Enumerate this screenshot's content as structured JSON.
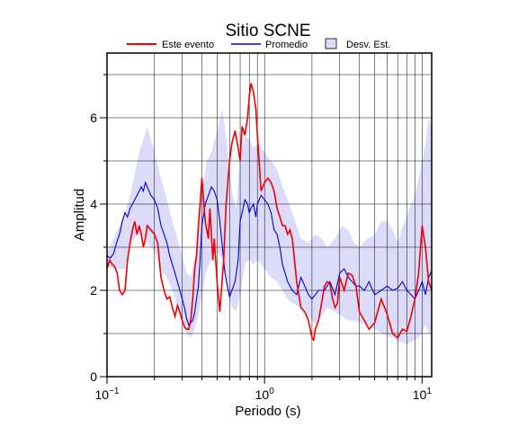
{
  "chart_data": {
    "type": "line",
    "title": "Sitio SCNE",
    "xlabel": "Periodo (s)",
    "ylabel": "Amplitud",
    "x_scale": "log",
    "xlim": [
      0.1,
      11.5
    ],
    "ylim": [
      0,
      7.5
    ],
    "grid": true,
    "legend_position": "top",
    "x_tick_labels": [
      {
        "value": 0.1,
        "base": "10",
        "exp": "−1"
      },
      {
        "value": 1,
        "base": "10",
        "exp": "0"
      },
      {
        "value": 10,
        "base": "10",
        "exp": "1"
      }
    ],
    "y_ticks": [
      0,
      2,
      4,
      6
    ],
    "legend": {
      "event_label": "Este evento",
      "mean_label": "Promedio",
      "std_label": "Desv. Est."
    },
    "colors": {
      "event": "#ee0000",
      "mean": "#0000dd",
      "std_fill": "#dcdcfa",
      "std_border": "#000000"
    },
    "series": [
      {
        "name": "Este evento",
        "x": [
          0.1,
          0.104,
          0.108,
          0.112,
          0.116,
          0.12,
          0.125,
          0.13,
          0.135,
          0.14,
          0.145,
          0.15,
          0.155,
          0.16,
          0.165,
          0.17,
          0.175,
          0.18,
          0.19,
          0.2,
          0.21,
          0.22,
          0.23,
          0.24,
          0.25,
          0.26,
          0.27,
          0.28,
          0.29,
          0.3,
          0.31,
          0.32,
          0.33,
          0.34,
          0.35,
          0.36,
          0.37,
          0.38,
          0.39,
          0.4,
          0.42,
          0.44,
          0.45,
          0.47,
          0.48,
          0.5,
          0.52,
          0.55,
          0.57,
          0.6,
          0.62,
          0.65,
          0.68,
          0.7,
          0.72,
          0.75,
          0.78,
          0.8,
          0.82,
          0.85,
          0.88,
          0.9,
          0.95,
          1.0,
          1.05,
          1.1,
          1.15,
          1.2,
          1.25,
          1.3,
          1.35,
          1.4,
          1.45,
          1.5,
          1.55,
          1.6,
          1.7,
          1.8,
          1.9,
          2.0,
          2.05,
          2.1,
          2.2,
          2.3,
          2.4,
          2.5,
          2.6,
          2.7,
          2.8,
          2.9,
          3.0,
          3.2,
          3.4,
          3.6,
          3.8,
          4.0,
          4.3,
          4.6,
          5.0,
          5.5,
          6.0,
          6.5,
          7.0,
          7.5,
          8.0,
          8.5,
          9.0,
          9.5,
          10.0,
          10.5,
          11.0,
          11.5
        ],
        "values": [
          2.5,
          2.7,
          2.6,
          2.55,
          2.4,
          2.0,
          1.9,
          2.0,
          2.7,
          3.1,
          3.4,
          3.6,
          3.3,
          3.5,
          3.3,
          3.0,
          3.2,
          3.5,
          3.4,
          3.3,
          3.1,
          2.3,
          2.0,
          1.8,
          1.85,
          1.6,
          1.4,
          1.65,
          1.5,
          1.3,
          1.15,
          1.1,
          1.1,
          1.3,
          1.8,
          2.5,
          2.8,
          3.5,
          4.0,
          4.6,
          3.6,
          3.2,
          3.9,
          2.7,
          3.2,
          2.2,
          1.5,
          2.7,
          4.0,
          5.0,
          5.4,
          5.7,
          5.3,
          5.0,
          5.8,
          5.6,
          6.0,
          6.5,
          6.8,
          6.6,
          6.2,
          5.6,
          4.3,
          4.5,
          4.6,
          4.5,
          4.3,
          3.9,
          3.7,
          3.5,
          3.5,
          3.3,
          3.4,
          3.2,
          2.7,
          2.2,
          1.6,
          1.5,
          1.3,
          0.9,
          0.85,
          1.1,
          1.3,
          1.7,
          2.1,
          2.2,
          2.15,
          1.8,
          1.6,
          1.7,
          2.3,
          2.0,
          2.4,
          2.35,
          2.1,
          1.5,
          1.3,
          1.1,
          1.25,
          1.8,
          1.45,
          1.0,
          0.9,
          1.1,
          1.05,
          1.4,
          1.8,
          2.4,
          3.5,
          3.0,
          2.2,
          2.0
        ]
      },
      {
        "name": "Promedio",
        "x": [
          0.1,
          0.105,
          0.11,
          0.115,
          0.12,
          0.125,
          0.13,
          0.135,
          0.14,
          0.145,
          0.15,
          0.155,
          0.16,
          0.165,
          0.17,
          0.175,
          0.18,
          0.19,
          0.2,
          0.21,
          0.22,
          0.23,
          0.24,
          0.25,
          0.26,
          0.27,
          0.28,
          0.29,
          0.3,
          0.31,
          0.32,
          0.33,
          0.34,
          0.35,
          0.36,
          0.37,
          0.38,
          0.39,
          0.4,
          0.42,
          0.44,
          0.46,
          0.48,
          0.5,
          0.52,
          0.54,
          0.56,
          0.58,
          0.6,
          0.62,
          0.65,
          0.68,
          0.7,
          0.72,
          0.75,
          0.78,
          0.8,
          0.82,
          0.85,
          0.88,
          0.9,
          0.95,
          1.0,
          1.05,
          1.1,
          1.15,
          1.2,
          1.25,
          1.3,
          1.35,
          1.4,
          1.5,
          1.6,
          1.7,
          1.8,
          1.9,
          2.0,
          2.2,
          2.4,
          2.6,
          2.8,
          3.0,
          3.2,
          3.4,
          3.6,
          3.8,
          4.0,
          4.3,
          4.6,
          5.0,
          5.5,
          6.0,
          6.5,
          7.0,
          7.5,
          8.0,
          8.5,
          9.0,
          9.5,
          10.0,
          10.5,
          11.0,
          11.5
        ],
        "values": [
          2.8,
          2.75,
          2.85,
          3.1,
          3.3,
          3.6,
          3.8,
          3.7,
          3.9,
          4.0,
          4.1,
          4.2,
          4.3,
          4.4,
          4.3,
          4.5,
          4.4,
          4.2,
          4.1,
          3.9,
          3.5,
          3.3,
          3.1,
          2.8,
          2.6,
          2.4,
          2.2,
          2.0,
          1.8,
          1.6,
          1.35,
          1.2,
          1.25,
          1.3,
          1.5,
          1.8,
          2.1,
          2.7,
          3.5,
          4.0,
          4.2,
          4.4,
          4.3,
          4.1,
          3.6,
          3.0,
          2.4,
          2.1,
          1.85,
          2.0,
          2.2,
          2.7,
          3.6,
          3.8,
          4.1,
          4.0,
          3.8,
          3.9,
          4.0,
          3.7,
          4.0,
          4.2,
          4.1,
          4.0,
          3.8,
          3.4,
          3.3,
          3.0,
          2.6,
          2.4,
          2.2,
          2.0,
          1.9,
          2.3,
          2.1,
          1.9,
          1.8,
          2.0,
          2.0,
          2.2,
          1.9,
          2.4,
          2.5,
          2.3,
          2.2,
          2.1,
          2.1,
          2.0,
          2.2,
          1.9,
          2.0,
          2.1,
          2.0,
          2.05,
          2.2,
          2.0,
          1.9,
          1.8,
          2.0,
          2.2,
          1.9,
          2.3,
          2.45
        ]
      }
    ],
    "std_band": {
      "x": [
        0.1,
        0.11,
        0.12,
        0.13,
        0.14,
        0.15,
        0.16,
        0.17,
        0.18,
        0.19,
        0.2,
        0.22,
        0.24,
        0.26,
        0.28,
        0.3,
        0.32,
        0.34,
        0.36,
        0.38,
        0.4,
        0.43,
        0.46,
        0.5,
        0.54,
        0.58,
        0.62,
        0.66,
        0.7,
        0.75,
        0.8,
        0.85,
        0.9,
        0.95,
        1.0,
        1.1,
        1.2,
        1.3,
        1.4,
        1.5,
        1.7,
        1.9,
        2.1,
        2.3,
        2.5,
        2.8,
        3.1,
        3.4,
        3.7,
        4.0,
        4.5,
        5.0,
        5.5,
        6.0,
        6.5,
        7.0,
        7.5,
        8.0,
        8.5,
        9.0,
        9.5,
        10.0,
        10.5,
        11.0,
        11.5
      ],
      "upper": [
        2.9,
        3.2,
        3.5,
        3.8,
        4.2,
        4.7,
        5.2,
        5.5,
        5.8,
        5.5,
        5.2,
        4.6,
        4.1,
        3.6,
        3.2,
        2.8,
        2.4,
        2.3,
        2.7,
        3.3,
        4.3,
        5.0,
        5.2,
        5.7,
        6.2,
        5.3,
        4.3,
        3.9,
        5.2,
        5.6,
        5.5,
        5.3,
        5.4,
        5.3,
        5.2,
        5.0,
        4.8,
        4.4,
        4.1,
        3.8,
        3.2,
        3.1,
        3.3,
        3.2,
        3.0,
        3.2,
        3.5,
        3.4,
        3.1,
        3.0,
        3.2,
        3.3,
        3.6,
        3.6,
        3.4,
        3.1,
        3.5,
        3.7,
        4.0,
        4.2,
        4.6,
        5.0,
        5.4,
        6.0,
        5.8
      ],
      "lower": [
        2.6,
        2.5,
        2.5,
        2.5,
        3.1,
        3.2,
        3.3,
        3.2,
        3.1,
        3.0,
        2.9,
        2.5,
        2.3,
        2.0,
        1.6,
        1.3,
        1.0,
        0.9,
        1.1,
        1.4,
        1.9,
        2.5,
        2.7,
        2.9,
        2.7,
        2.0,
        1.6,
        1.5,
        1.9,
        2.6,
        2.7,
        2.6,
        2.7,
        2.6,
        2.5,
        2.3,
        2.2,
        2.0,
        1.8,
        1.7,
        1.6,
        1.4,
        1.2,
        1.4,
        1.6,
        1.5,
        1.4,
        1.3,
        1.3,
        1.25,
        1.2,
        1.1,
        1.0,
        0.95,
        0.9,
        0.8,
        0.8,
        0.75,
        0.8,
        0.85,
        0.9,
        1.0,
        1.2,
        1.0,
        1.0
      ]
    }
  }
}
